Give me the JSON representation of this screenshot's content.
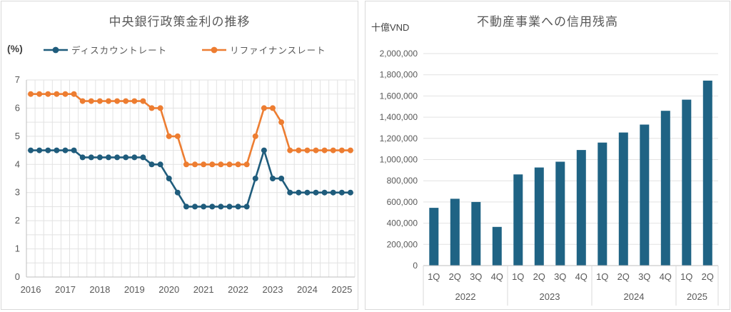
{
  "colors": {
    "axis_text": "#595959",
    "title_text": "#595959",
    "gridline": "#e2e2e2",
    "axis_line": "#bfbfbf",
    "card_border": "#d9d9d9"
  },
  "chart_data": [
    {
      "type": "line",
      "title": "中央銀行政策金利の推移",
      "unit_label": "(%)",
      "x_year_labels": [
        "2016",
        "2017",
        "2018",
        "2019",
        "2020",
        "2021",
        "2022",
        "2023",
        "2024",
        "2025"
      ],
      "points_per_quarter": true,
      "x_range_note": "quarterly points 2016Q1 - 2025Q2",
      "ylim": [
        0,
        7
      ],
      "y_ticks": [
        0,
        1,
        2,
        3,
        4,
        5,
        6,
        7
      ],
      "y_minor_step": 0.5,
      "grid": true,
      "legend_position": "top",
      "series": [
        {
          "name": "ディスカウントレート",
          "color": "#1f5c7c",
          "values": [
            4.5,
            4.5,
            4.5,
            4.5,
            4.5,
            4.5,
            4.25,
            4.25,
            4.25,
            4.25,
            4.25,
            4.25,
            4.25,
            4.25,
            4.0,
            4.0,
            3.5,
            3.0,
            2.5,
            2.5,
            2.5,
            2.5,
            2.5,
            2.5,
            2.5,
            2.5,
            3.5,
            4.5,
            3.5,
            3.5,
            3.0,
            3.0,
            3.0,
            3.0,
            3.0,
            3.0,
            3.0,
            3.0
          ]
        },
        {
          "name": "リファイナンスレート",
          "color": "#ed7d31",
          "values": [
            6.5,
            6.5,
            6.5,
            6.5,
            6.5,
            6.5,
            6.25,
            6.25,
            6.25,
            6.25,
            6.25,
            6.25,
            6.25,
            6.25,
            6.0,
            6.0,
            5.0,
            5.0,
            4.0,
            4.0,
            4.0,
            4.0,
            4.0,
            4.0,
            4.0,
            4.0,
            5.0,
            6.0,
            6.0,
            5.5,
            4.5,
            4.5,
            4.5,
            4.5,
            4.5,
            4.5,
            4.5,
            4.5
          ]
        }
      ]
    },
    {
      "type": "bar",
      "title": "不動産事業への信用残高",
      "unit_label": "十億VND",
      "groups": [
        {
          "year": "2022",
          "quarters": [
            "1Q",
            "2Q",
            "3Q",
            "4Q"
          ]
        },
        {
          "year": "2023",
          "quarters": [
            "1Q",
            "2Q",
            "3Q",
            "4Q"
          ]
        },
        {
          "year": "2024",
          "quarters": [
            "1Q",
            "2Q",
            "3Q",
            "4Q"
          ]
        },
        {
          "year": "2025",
          "quarters": [
            "1Q",
            "2Q"
          ]
        }
      ],
      "values": [
        545000,
        630000,
        600000,
        365000,
        860000,
        925000,
        980000,
        1090000,
        1160000,
        1255000,
        1330000,
        1460000,
        1565000,
        1745000
      ],
      "ylim": [
        0,
        2000000
      ],
      "y_tick_step": 200000,
      "y_tick_labels": [
        "0",
        "200,000",
        "400,000",
        "600,000",
        "800,000",
        "1,000,000",
        "1,200,000",
        "1,400,000",
        "1,600,000",
        "1,800,000",
        "2,000,000"
      ],
      "bar_color": "#1f6384",
      "grid": true,
      "legend_position": "none"
    }
  ]
}
